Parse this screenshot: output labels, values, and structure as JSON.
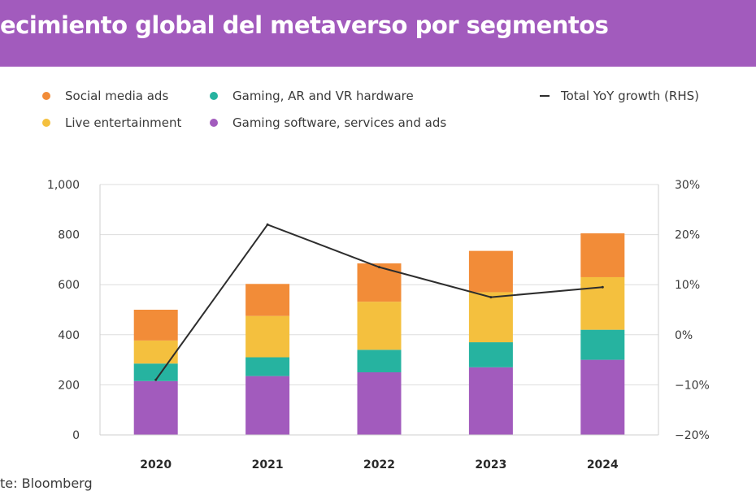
{
  "title": "ecimiento global del metaverso por segmentos",
  "source": "te: Bloomberg",
  "colors": {
    "banner": "#a25bbd",
    "social_media_ads": "#f28c38",
    "live_entertainment": "#f4c03e",
    "gaming_hardware": "#26b3a0",
    "gaming_software": "#a25bbd",
    "growth_line": "#2d2d2d"
  },
  "legend": [
    {
      "label": "Social media ads",
      "color": "#f28c38",
      "marker": "dot"
    },
    {
      "label": "Gaming, AR and VR hardware",
      "color": "#26b3a0",
      "marker": "dot"
    },
    {
      "label": "Total YoY growth (RHS)",
      "color": "#2d2d2d",
      "marker": "dash"
    },
    {
      "label": "Live entertainment",
      "color": "#f4c03e",
      "marker": "dot"
    },
    {
      "label": "Gaming software, services and ads",
      "color": "#a25bbd",
      "marker": "dot"
    }
  ],
  "chart_data": {
    "type": "bar",
    "stacked": true,
    "categories": [
      "2020",
      "2021",
      "2022",
      "2023",
      "2024"
    ],
    "series": [
      {
        "name": "Gaming software, services and ads",
        "color": "#a25bbd",
        "values": [
          215,
          235,
          250,
          270,
          300
        ]
      },
      {
        "name": "Gaming, AR and VR hardware",
        "color": "#26b3a0",
        "values": [
          70,
          75,
          90,
          100,
          120
        ]
      },
      {
        "name": "Live entertainment",
        "color": "#f4c03e",
        "values": [
          92,
          165,
          192,
          200,
          210
        ]
      },
      {
        "name": "Social media ads",
        "color": "#f28c38",
        "values": [
          123,
          128,
          153,
          165,
          175
        ]
      }
    ],
    "line_series": {
      "name": "Total YoY growth (RHS)",
      "axis": "right",
      "color": "#2d2d2d",
      "values": [
        -9,
        22,
        13.5,
        7.5,
        9.5
      ]
    },
    "y_left": {
      "ylim": [
        0,
        1000
      ],
      "ticks": [
        0,
        200,
        400,
        600,
        800,
        1000
      ],
      "tick_labels": [
        "0",
        "200",
        "400",
        "600",
        "800",
        "1,000"
      ]
    },
    "y_right": {
      "ylim": [
        -20,
        30
      ],
      "ticks": [
        -20,
        -10,
        0,
        10,
        20,
        30
      ],
      "tick_labels": [
        "−20%",
        "−10%",
        "0%",
        "10%",
        "20%",
        "30%"
      ]
    },
    "grid": "horizontal",
    "legend_position": "top"
  }
}
